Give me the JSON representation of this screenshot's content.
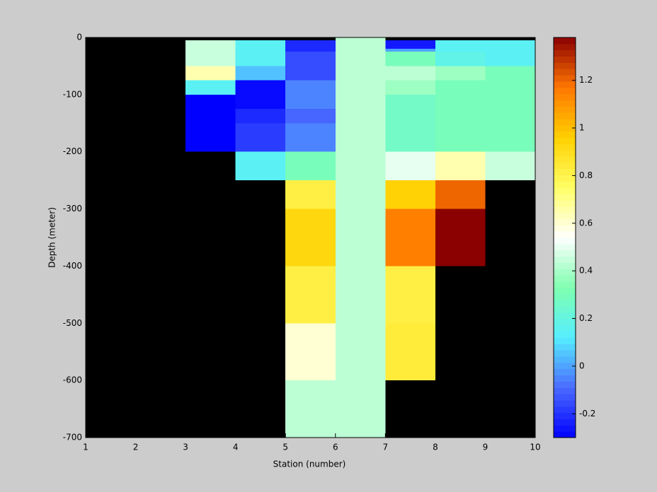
{
  "chart_data": {
    "type": "heatmap",
    "x_label": "Station (number)",
    "y_label": "Depth (meter)",
    "xlim": [
      1,
      10
    ],
    "xticks": [
      1,
      2,
      3,
      4,
      5,
      6,
      7,
      8,
      9,
      10
    ],
    "ylim": [
      -700,
      0
    ],
    "yticks": [
      -700,
      -600,
      -500,
      -400,
      -300,
      -200,
      -100,
      0
    ],
    "background": "#000000",
    "clim": [
      -0.3,
      1.38
    ],
    "colorbar_ticks": [
      -0.2,
      0,
      0.2,
      0.4,
      0.6,
      0.8,
      1,
      1.2
    ],
    "colormap": [
      "#0000ff",
      "#4a6bff",
      "#55eeff",
      "#7fffaf",
      "#ffffff",
      "#ffff66",
      "#ffd000",
      "#ff7700",
      "#8b0000"
    ],
    "cells": [
      {
        "x": [
          3,
          4
        ],
        "y": [
          -5,
          -50
        ],
        "value": 0.45
      },
      {
        "x": [
          3,
          4
        ],
        "y": [
          -50,
          -75
        ],
        "value": 0.65
      },
      {
        "x": [
          3,
          4
        ],
        "y": [
          -75,
          -100
        ],
        "value": 0.15
      },
      {
        "x": [
          3,
          4
        ],
        "y": [
          -100,
          -125
        ],
        "value": -0.3
      },
      {
        "x": [
          3,
          4
        ],
        "y": [
          -125,
          -200
        ],
        "value": -0.3
      },
      {
        "x": [
          4,
          5
        ],
        "y": [
          -5,
          -50
        ],
        "value": 0.15
      },
      {
        "x": [
          4,
          5
        ],
        "y": [
          -50,
          -75
        ],
        "value": 0.05
      },
      {
        "x": [
          4,
          5
        ],
        "y": [
          -75,
          -125
        ],
        "value": -0.28
      },
      {
        "x": [
          4,
          5
        ],
        "y": [
          -125,
          -150
        ],
        "value": -0.22
      },
      {
        "x": [
          4,
          5
        ],
        "y": [
          -150,
          -200
        ],
        "value": -0.18
      },
      {
        "x": [
          4,
          5
        ],
        "y": [
          -200,
          -250
        ],
        "value": 0.15
      },
      {
        "x": [
          5,
          6
        ],
        "y": [
          -5,
          -25
        ],
        "value": -0.22
      },
      {
        "x": [
          5,
          6
        ],
        "y": [
          -25,
          -75
        ],
        "value": -0.15
      },
      {
        "x": [
          5,
          6
        ],
        "y": [
          -75,
          -125
        ],
        "value": -0.05
      },
      {
        "x": [
          5,
          6
        ],
        "y": [
          -125,
          -150
        ],
        "value": -0.1
      },
      {
        "x": [
          5,
          6
        ],
        "y": [
          -150,
          -200
        ],
        "value": -0.05
      },
      {
        "x": [
          5,
          6
        ],
        "y": [
          -200,
          -250
        ],
        "value": 0.3
      },
      {
        "x": [
          5,
          6
        ],
        "y": [
          -250,
          -300
        ],
        "value": 0.82
      },
      {
        "x": [
          5,
          6
        ],
        "y": [
          -300,
          -400
        ],
        "value": 0.93
      },
      {
        "x": [
          5,
          6
        ],
        "y": [
          -400,
          -500
        ],
        "value": 0.82
      },
      {
        "x": [
          5,
          6
        ],
        "y": [
          -500,
          -600
        ],
        "value": 0.6
      },
      {
        "x": [
          5,
          6
        ],
        "y": [
          -600,
          -700
        ],
        "value": 0.43
      },
      {
        "x": [
          6,
          7
        ],
        "y": [
          0,
          -700
        ],
        "value": 0.43
      },
      {
        "x": [
          7,
          8
        ],
        "y": [
          -5,
          -20
        ],
        "value": -0.25
      },
      {
        "x": [
          7,
          8
        ],
        "y": [
          -20,
          -25
        ],
        "value": 0
      },
      {
        "x": [
          7,
          8
        ],
        "y": [
          -25,
          -50
        ],
        "value": 0.3
      },
      {
        "x": [
          7,
          8
        ],
        "y": [
          -50,
          -75
        ],
        "value": 0.43
      },
      {
        "x": [
          7,
          8
        ],
        "y": [
          -75,
          -100
        ],
        "value": 0.38
      },
      {
        "x": [
          7,
          8
        ],
        "y": [
          -100,
          -200
        ],
        "value": 0.27
      },
      {
        "x": [
          7,
          8
        ],
        "y": [
          -200,
          -250
        ],
        "value": 0.5
      },
      {
        "x": [
          7,
          8
        ],
        "y": [
          -250,
          -300
        ],
        "value": 0.95
      },
      {
        "x": [
          7,
          8
        ],
        "y": [
          -300,
          -400
        ],
        "value": 1.15
      },
      {
        "x": [
          7,
          8
        ],
        "y": [
          -400,
          -500
        ],
        "value": 0.82
      },
      {
        "x": [
          7,
          8
        ],
        "y": [
          -500,
          -600
        ],
        "value": 0.84
      },
      {
        "x": [
          8,
          9
        ],
        "y": [
          -5,
          -25
        ],
        "value": 0.15
      },
      {
        "x": [
          8,
          9
        ],
        "y": [
          -25,
          -50
        ],
        "value": 0.18
      },
      {
        "x": [
          8,
          9
        ],
        "y": [
          -50,
          -75
        ],
        "value": 0.38
      },
      {
        "x": [
          8,
          9
        ],
        "y": [
          -75,
          -200
        ],
        "value": 0.3
      },
      {
        "x": [
          8,
          9
        ],
        "y": [
          -200,
          -250
        ],
        "value": 0.65
      },
      {
        "x": [
          8,
          9
        ],
        "y": [
          -250,
          -300
        ],
        "value": 1.2
      },
      {
        "x": [
          8,
          9
        ],
        "y": [
          -300,
          -400
        ],
        "value": 1.38
      },
      {
        "x": [
          9,
          10
        ],
        "y": [
          -5,
          -50
        ],
        "value": 0.15
      },
      {
        "x": [
          9,
          10
        ],
        "y": [
          -50,
          -200
        ],
        "value": 0.3
      },
      {
        "x": [
          9,
          10
        ],
        "y": [
          -200,
          -250
        ],
        "value": 0.45
      }
    ]
  }
}
